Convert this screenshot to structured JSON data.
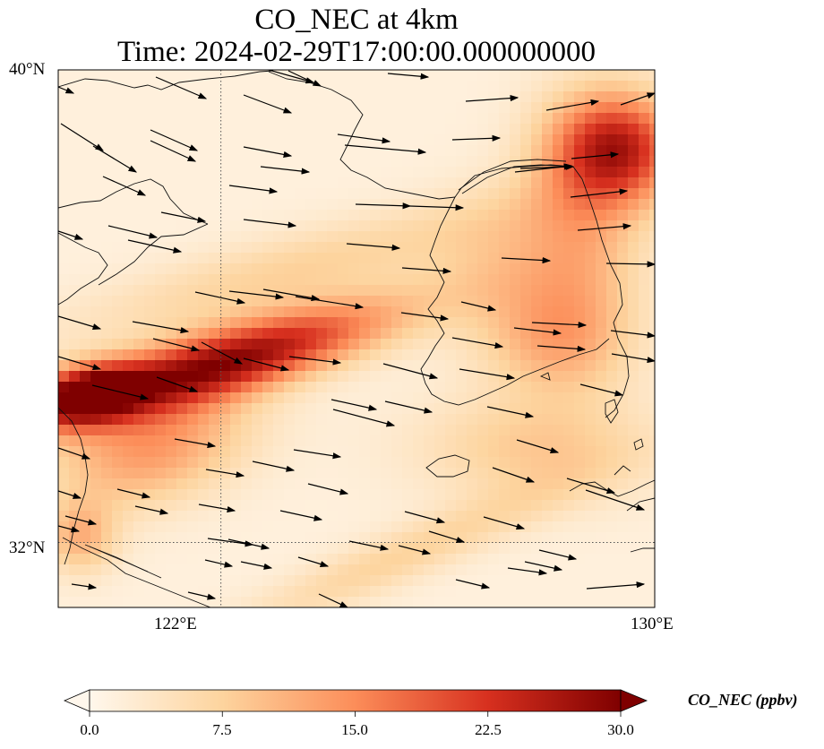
{
  "title_line1": "CO_NEC at 4km",
  "title_line2": "Time: 2024-02-29T17:00:00.000000000",
  "map": {
    "lon_range": [
      119,
      130
    ],
    "lat_range": [
      30.9,
      40
    ],
    "gridlines": {
      "lons": [
        122
      ],
      "lats": [
        32
      ],
      "style": "dotted"
    },
    "lon_labels": [
      {
        "value": 122,
        "text": "122°E"
      },
      {
        "value": 130,
        "text": "130°E"
      }
    ],
    "lat_labels": [
      {
        "value": 40,
        "text": "40°N"
      },
      {
        "value": 32,
        "text": "32°N"
      }
    ],
    "field_name": "CO_NEC",
    "colormap": "OrRd",
    "colors": {
      "low": "#fff7ec",
      "mid": "#fc8d59",
      "high": "#7f0000"
    },
    "vectors": "wind arrows (westerly / west-northwesterly)"
  },
  "colorbar": {
    "label": "CO_NEC (ppbv)",
    "min": 0.0,
    "max": 30.0,
    "ticks": [
      "0.0",
      "7.5",
      "15.0",
      "22.5",
      "30.0"
    ],
    "extend": "both"
  }
}
